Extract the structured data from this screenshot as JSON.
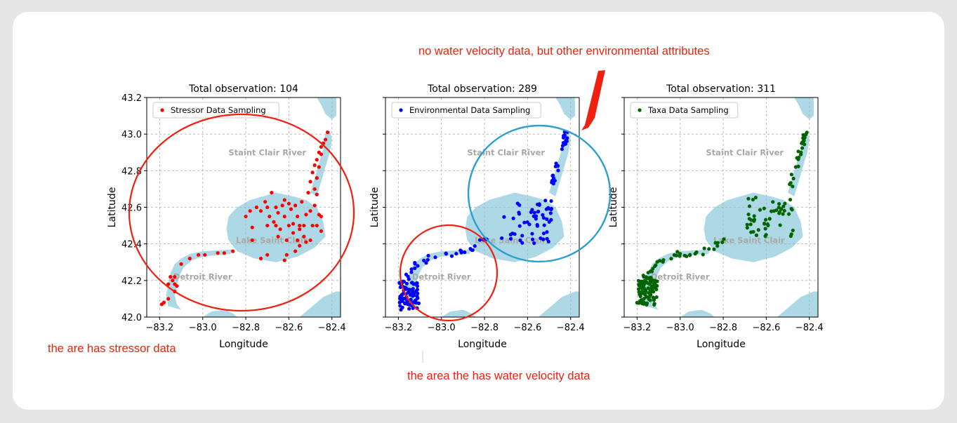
{
  "annotations": {
    "top_note": "no water velocity data, but other environmental attributes",
    "left_note": "the are has stressor data",
    "bottom_note": "the area the has water velocity data"
  },
  "colors": {
    "water": "#add8e6",
    "annotation": "#f0200e",
    "highlight_circle_blue": "#2a9fd0",
    "stressor": "#ff0000",
    "environmental": "#0000ff",
    "taxa": "#006400"
  },
  "map_labels": [
    "Staint Clair River",
    "Lake Saint Clair",
    "Detroit River"
  ],
  "chart_data": [
    {
      "type": "scatter",
      "title": "Total observation: 104",
      "xlabel": "Longitude",
      "ylabel": "Latitude",
      "xlim": [
        -83.26,
        -82.36
      ],
      "ylim": [
        42.0,
        43.2
      ],
      "xticks": [
        "−83.2",
        "−83.0",
        "−82.8",
        "−82.6",
        "−82.4"
      ],
      "yticks": [
        "42.0",
        "42.2",
        "42.4",
        "42.6",
        "42.8",
        "43.0",
        "43.2"
      ],
      "grid": true,
      "legend": "top-left",
      "series": [
        {
          "name": "Stressor Data Sampling",
          "color": "#ff0000",
          "points": [
            [
              -83.19,
              42.07
            ],
            [
              -83.18,
              42.08
            ],
            [
              -83.16,
              42.1
            ],
            [
              -83.16,
              42.18
            ],
            [
              -83.15,
              42.22
            ],
            [
              -83.14,
              42.2
            ],
            [
              -83.13,
              42.18
            ],
            [
              -83.13,
              42.22
            ],
            [
              -83.12,
              42.17
            ],
            [
              -83.13,
              42.14
            ],
            [
              -83.1,
              42.29
            ],
            [
              -83.06,
              42.32
            ],
            [
              -83.02,
              42.34
            ],
            [
              -82.99,
              42.34
            ],
            [
              -82.93,
              42.35
            ],
            [
              -82.9,
              42.35
            ],
            [
              -82.86,
              42.36
            ],
            [
              -82.77,
              42.42
            ],
            [
              -82.73,
              42.32
            ],
            [
              -82.7,
              42.34
            ],
            [
              -82.62,
              42.31
            ],
            [
              -82.61,
              42.34
            ],
            [
              -82.57,
              42.36
            ],
            [
              -82.55,
              42.39
            ],
            [
              -82.5,
              42.42
            ],
            [
              -82.45,
              42.47
            ],
            [
              -82.45,
              42.55
            ],
            [
              -82.47,
              42.5
            ],
            [
              -82.8,
              42.55
            ],
            [
              -82.77,
              42.49
            ],
            [
              -82.75,
              42.6
            ],
            [
              -82.73,
              42.58
            ],
            [
              -82.71,
              42.63
            ],
            [
              -82.7,
              42.6
            ],
            [
              -82.69,
              42.55
            ],
            [
              -82.68,
              42.68
            ],
            [
              -82.67,
              42.52
            ],
            [
              -82.66,
              42.6
            ],
            [
              -82.65,
              42.57
            ],
            [
              -82.64,
              42.48
            ],
            [
              -82.63,
              42.61
            ],
            [
              -82.62,
              42.55
            ],
            [
              -82.61,
              42.42
            ],
            [
              -82.6,
              42.5
            ],
            [
              -82.59,
              42.59
            ],
            [
              -82.58,
              42.46
            ],
            [
              -82.57,
              42.61
            ],
            [
              -82.56,
              42.55
            ],
            [
              -82.55,
              42.48
            ],
            [
              -82.54,
              42.63
            ],
            [
              -82.53,
              42.5
            ],
            [
              -82.52,
              42.41
            ],
            [
              -82.51,
              42.68
            ],
            [
              -82.5,
              42.58
            ],
            [
              -82.49,
              42.5
            ],
            [
              -82.48,
              42.61
            ],
            [
              -82.47,
              42.67
            ],
            [
              -82.46,
              42.56
            ],
            [
              -82.5,
              42.74
            ],
            [
              -82.49,
              42.79
            ],
            [
              -82.48,
              42.83
            ],
            [
              -82.47,
              42.86
            ],
            [
              -82.46,
              42.9
            ],
            [
              -82.45,
              42.93
            ],
            [
              -82.44,
              42.95
            ],
            [
              -82.43,
              42.97
            ],
            [
              -82.42,
              43.01
            ],
            [
              -82.45,
              42.89
            ],
            [
              -82.55,
              42.5
            ],
            [
              -82.58,
              42.51
            ],
            [
              -82.62,
              42.64
            ],
            [
              -82.66,
              42.5
            ],
            [
              -82.7,
              42.5
            ],
            [
              -82.78,
              42.58
            ],
            [
              -82.52,
              42.56
            ],
            [
              -82.48,
              42.7
            ],
            [
              -82.47,
              42.76
            ],
            [
              -82.46,
              42.82
            ],
            [
              -82.6,
              42.62
            ],
            [
              -82.56,
              42.42
            ],
            [
              -82.53,
              42.44
            ],
            [
              -82.65,
              42.44
            ]
          ]
        }
      ]
    },
    {
      "type": "scatter",
      "title": "Total observation: 289",
      "xlabel": "Longitude",
      "ylabel": "Latitude",
      "xlim": [
        -83.26,
        -82.36
      ],
      "ylim": [
        42.0,
        43.2
      ],
      "xticks": [
        "−83.2",
        "−83.0",
        "−82.8",
        "−82.6",
        "−82.4"
      ],
      "grid": true,
      "legend": "top-left",
      "series": [
        {
          "name": "Environmental Data Sampling",
          "color": "#0000ff",
          "points": []
        }
      ]
    },
    {
      "type": "scatter",
      "title": "Total observation: 311",
      "xlabel": "Longitude",
      "ylabel": "Latitude",
      "xlim": [
        -83.26,
        -82.36
      ],
      "ylim": [
        42.0,
        43.2
      ],
      "xticks": [
        "−83.2",
        "−83.0",
        "−82.8",
        "−82.6",
        "−82.4"
      ],
      "grid": true,
      "legend": "top-left",
      "series": [
        {
          "name": "Taxa Data Sampling",
          "color": "#006400",
          "points": []
        }
      ]
    }
  ]
}
